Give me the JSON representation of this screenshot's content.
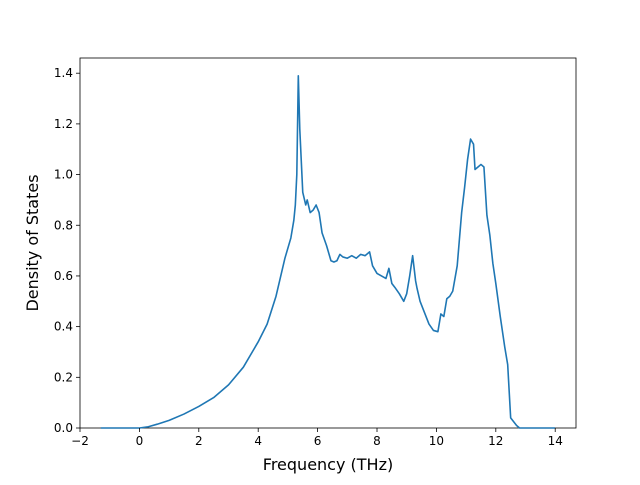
{
  "chart_data": {
    "type": "line",
    "title": "",
    "xlabel": "Frequency (THz)",
    "ylabel": "Density of States",
    "xlim": [
      -2.0,
      14.7
    ],
    "ylim": [
      0.0,
      1.46
    ],
    "xticks": [
      -2,
      0,
      2,
      4,
      6,
      8,
      10,
      12,
      14
    ],
    "xtick_labels": [
      "−2",
      "0",
      "2",
      "4",
      "6",
      "8",
      "10",
      "12",
      "14"
    ],
    "yticks": [
      0.0,
      0.2,
      0.4,
      0.6,
      0.8,
      1.0,
      1.2,
      1.4
    ],
    "ytick_labels": [
      "0.0",
      "0.2",
      "0.4",
      "0.6",
      "0.8",
      "1.0",
      "1.2",
      "1.4"
    ],
    "grid": false,
    "line_color": "#1f77b4",
    "series": [
      {
        "x": [
          -1.3,
          -0.5,
          0.0,
          0.3,
          0.6,
          1.0,
          1.5,
          2.0,
          2.5,
          3.0,
          3.5,
          4.0,
          4.3,
          4.6,
          4.9,
          5.1,
          5.2,
          5.25,
          5.3,
          5.35,
          5.4,
          5.5,
          5.6,
          5.65,
          5.75,
          5.85,
          5.95,
          6.05,
          6.15,
          6.3,
          6.45,
          6.55,
          6.65,
          6.75,
          6.85,
          7.0,
          7.15,
          7.3,
          7.45,
          7.6,
          7.75,
          7.85,
          8.0,
          8.15,
          8.3,
          8.4,
          8.5,
          8.6,
          8.75,
          8.9,
          9.0,
          9.1,
          9.2,
          9.3,
          9.35,
          9.45,
          9.6,
          9.75,
          9.9,
          10.05,
          10.15,
          10.25,
          10.35,
          10.45,
          10.55,
          10.7,
          10.85,
          10.95,
          11.05,
          11.15,
          11.25,
          11.3,
          11.4,
          11.5,
          11.6,
          11.7,
          11.8,
          11.9,
          12.0,
          12.15,
          12.3,
          12.4,
          12.5,
          12.7,
          12.8,
          13.0,
          13.5,
          14.0
        ],
        "y": [
          0.0,
          0.0,
          0.0,
          0.005,
          0.015,
          0.03,
          0.055,
          0.085,
          0.12,
          0.17,
          0.24,
          0.34,
          0.41,
          0.52,
          0.67,
          0.75,
          0.82,
          0.88,
          1.0,
          1.39,
          1.18,
          0.93,
          0.88,
          0.9,
          0.85,
          0.86,
          0.88,
          0.85,
          0.77,
          0.72,
          0.66,
          0.655,
          0.66,
          0.685,
          0.675,
          0.67,
          0.68,
          0.67,
          0.685,
          0.68,
          0.695,
          0.64,
          0.61,
          0.6,
          0.59,
          0.63,
          0.57,
          0.555,
          0.53,
          0.5,
          0.53,
          0.6,
          0.68,
          0.58,
          0.55,
          0.5,
          0.455,
          0.41,
          0.385,
          0.38,
          0.45,
          0.44,
          0.51,
          0.52,
          0.54,
          0.64,
          0.85,
          0.95,
          1.06,
          1.14,
          1.12,
          1.02,
          1.03,
          1.04,
          1.03,
          0.84,
          0.76,
          0.65,
          0.57,
          0.44,
          0.32,
          0.25,
          0.04,
          0.01,
          0.0,
          0.0,
          0.0,
          0.0
        ]
      }
    ]
  }
}
